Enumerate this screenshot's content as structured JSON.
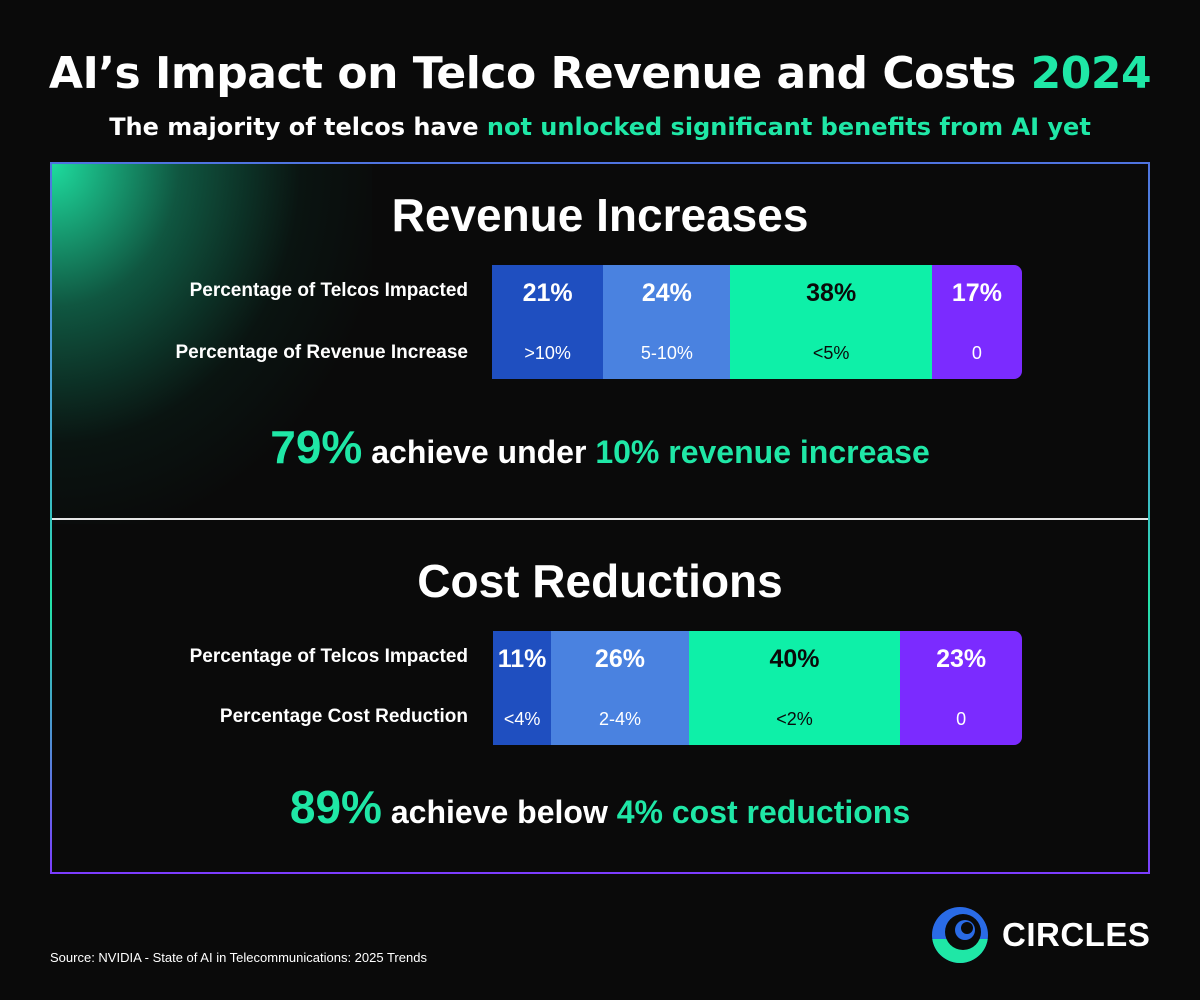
{
  "title": {
    "main": "AI’s Impact on Telco Revenue and Costs ",
    "year": "2024"
  },
  "subtitle": {
    "plain": "The majority of telcos have ",
    "highlight": "not unlocked significant benefits from AI yet"
  },
  "colors": {
    "accent": "#1fe7a6",
    "dark_blue": "#1f4fc0",
    "light_blue": "#4a82e0",
    "green": "#0ef0a8",
    "purple": "#7b2bff"
  },
  "revenue": {
    "title": "Revenue Increases",
    "row1_label": "Percentage of Telcos Impacted",
    "row2_label": "Percentage of Revenue Increase",
    "summary": {
      "big": "79%",
      "mid": " achieve under ",
      "highlight": "10% revenue increase"
    }
  },
  "costs": {
    "title": "Cost Reductions",
    "row1_label": "Percentage of Telcos Impacted",
    "row2_label": "Percentage Cost Reduction",
    "summary": {
      "big": "89%",
      "mid": " achieve below ",
      "highlight": "4% cost reductions"
    }
  },
  "chart_data": [
    {
      "type": "bar",
      "title": "Revenue Increases",
      "categories": [
        ">10%",
        "5-10%",
        "<5%",
        "0"
      ],
      "values": [
        21,
        24,
        38,
        17
      ],
      "labels": [
        "21%",
        "24%",
        "38%",
        "17%"
      ],
      "unit": "%"
    },
    {
      "type": "bar",
      "title": "Cost Reductions",
      "categories": [
        "<4%",
        "2-4%",
        "<2%",
        "0"
      ],
      "values": [
        11,
        26,
        40,
        23
      ],
      "labels": [
        "11%",
        "26%",
        "40%",
        "23%"
      ],
      "unit": "%"
    }
  ],
  "source": "Source: NVIDIA - State of AI in Telecommunications: 2025 Trends",
  "logo": {
    "text": "CIRCLES",
    "icon": "circles-logo-icon"
  }
}
